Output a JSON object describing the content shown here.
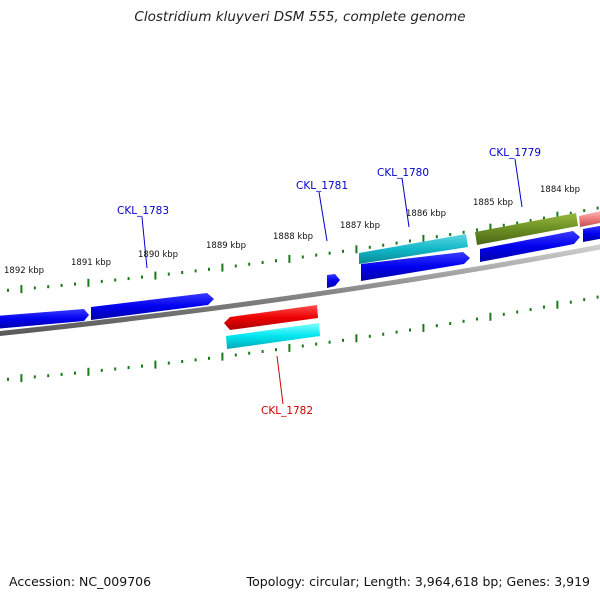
{
  "title": "Clostridium kluyveri DSM 555, complete genome",
  "footer": {
    "accession": "Accession: NC_009706",
    "summary": "Topology: circular; Length: 3,964,618 bp; Genes: 3,919"
  },
  "kbp_labels": [
    "1892 kbp",
    "1891 kbp",
    "1890 kbp",
    "1889 kbp",
    "1888 kbp",
    "1887 kbp",
    "1886 kbp",
    "1885 kbp",
    "1884 kbp"
  ],
  "gene_labels": {
    "ckl_1783": "CKL_1783",
    "ckl_1781": "CKL_1781",
    "ckl_1780": "CKL_1780",
    "ckl_1779": "CKL_1779",
    "ckl_1782": "CKL_1782"
  },
  "colors": {
    "blue_gene": "#0000ee",
    "red_gene": "#ee0000",
    "cyan_gene": "#00d8e8",
    "teal_gene": "#12b8c8",
    "olive_gene": "#6b8e23",
    "salmon_gene": "#f08080",
    "backbone": "#888888",
    "tick": "#1a7a1a",
    "label_blue": "#0000cc",
    "label_red": "#cc0000"
  }
}
